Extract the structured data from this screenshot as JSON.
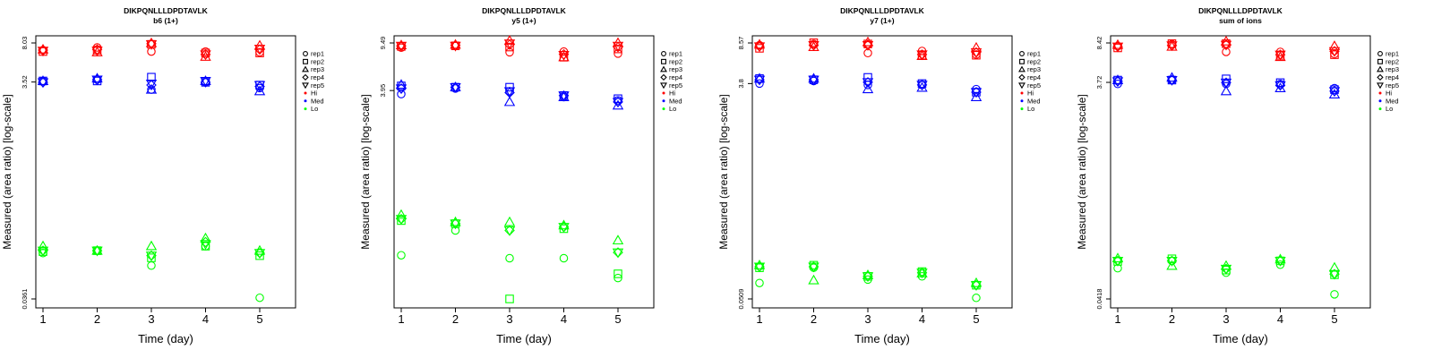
{
  "chart_data": [
    {
      "type": "scatter",
      "title": "DIKPQNLLLDPDTAVLK",
      "subtitle": "b6 (1+)",
      "xlabel": "Time (day)",
      "ylabel": "Measured (area ratio) [log-scale]",
      "scale": "log",
      "x_ticks": [
        "1",
        "2",
        "3",
        "4",
        "5"
      ],
      "y_ticks": [
        "8.03",
        "3.52",
        "0.0361"
      ],
      "ylim": [
        0.0361,
        8.03
      ],
      "series": [
        {
          "group": "Hi",
          "rep": "rep1",
          "values": [
            6.9,
            7.3,
            6.7,
            6.7,
            6.6
          ]
        },
        {
          "group": "Hi",
          "rep": "rep2",
          "values": [
            6.7,
            6.9,
            7.8,
            6.5,
            6.5
          ]
        },
        {
          "group": "Hi",
          "rep": "rep3",
          "values": [
            7.0,
            6.6,
            8.0,
            6.0,
            7.6
          ]
        },
        {
          "group": "Hi",
          "rep": "rep4",
          "values": [
            6.9,
            7.0,
            7.9,
            6.3,
            7.0
          ]
        },
        {
          "group": "Hi",
          "rep": "rep5",
          "values": [
            6.8,
            6.8,
            7.8,
            6.3,
            7.1
          ]
        },
        {
          "group": "Med",
          "rep": "rep1",
          "values": [
            3.6,
            3.7,
            3.0,
            3.5,
            3.1
          ]
        },
        {
          "group": "Med",
          "rep": "rep2",
          "values": [
            3.6,
            3.6,
            3.9,
            3.5,
            3.3
          ]
        },
        {
          "group": "Med",
          "rep": "rep3",
          "values": [
            3.6,
            3.8,
            3.0,
            3.6,
            2.9
          ]
        },
        {
          "group": "Med",
          "rep": "rep4",
          "values": [
            3.5,
            3.7,
            3.3,
            3.5,
            3.2
          ]
        },
        {
          "group": "Med",
          "rep": "rep5",
          "values": [
            3.5,
            3.7,
            3.4,
            3.6,
            3.3
          ]
        },
        {
          "group": "Lo",
          "rep": "rep1",
          "values": [
            0.095,
            0.1,
            0.073,
            0.11,
            0.037
          ]
        },
        {
          "group": "Lo",
          "rep": "rep2",
          "values": [
            0.098,
            0.1,
            0.086,
            0.11,
            0.09
          ]
        },
        {
          "group": "Lo",
          "rep": "rep3",
          "values": [
            0.11,
            0.1,
            0.11,
            0.13,
            0.1
          ]
        },
        {
          "group": "Lo",
          "rep": "rep4",
          "values": [
            0.1,
            0.1,
            0.09,
            0.12,
            0.095
          ]
        },
        {
          "group": "Lo",
          "rep": "rep5",
          "values": [
            0.1,
            0.1,
            0.09,
            0.115,
            0.095
          ]
        }
      ]
    },
    {
      "type": "scatter",
      "title": "DIKPQNLLLDPDTAVLK",
      "subtitle": "y5 (1+)",
      "xlabel": "Time (day)",
      "ylabel": "Measured (area ratio) [log-scale]",
      "scale": "log",
      "x_ticks": [
        "1",
        "2",
        "3",
        "4",
        "5"
      ],
      "y_ticks": [
        "9.49",
        "3.95"
      ],
      "ylim": [
        0.085,
        9.49
      ],
      "series": [
        {
          "group": "Hi",
          "rep": "rep1",
          "values": [
            8.7,
            9.0,
            8.0,
            8.1,
            7.8
          ]
        },
        {
          "group": "Hi",
          "rep": "rep2",
          "values": [
            8.9,
            9.0,
            8.8,
            7.3,
            8.5
          ]
        },
        {
          "group": "Hi",
          "rep": "rep3",
          "values": [
            9.1,
            9.2,
            9.9,
            7.3,
            9.5
          ]
        },
        {
          "group": "Hi",
          "rep": "rep4",
          "values": [
            9.0,
            9.1,
            9.2,
            7.7,
            8.8
          ]
        },
        {
          "group": "Hi",
          "rep": "rep5",
          "values": [
            9.0,
            9.0,
            9.4,
            7.6,
            9.0
          ]
        },
        {
          "group": "Med",
          "rep": "rep1",
          "values": [
            3.7,
            4.1,
            3.9,
            3.5,
            3.3
          ]
        },
        {
          "group": "Med",
          "rep": "rep2",
          "values": [
            4.3,
            4.2,
            4.2,
            3.6,
            3.4
          ]
        },
        {
          "group": "Med",
          "rep": "rep3",
          "values": [
            4.4,
            4.2,
            3.2,
            3.5,
            3.0
          ]
        },
        {
          "group": "Med",
          "rep": "rep4",
          "values": [
            4.1,
            4.2,
            3.8,
            3.6,
            3.2
          ]
        },
        {
          "group": "Med",
          "rep": "rep5",
          "values": [
            4.1,
            4.2,
            3.9,
            3.6,
            3.2
          ]
        },
        {
          "group": "Lo",
          "rep": "rep1",
          "values": [
            0.19,
            0.3,
            0.18,
            0.18,
            0.125
          ]
        },
        {
          "group": "Lo",
          "rep": "rep2",
          "values": [
            0.36,
            0.34,
            0.085,
            0.31,
            0.135
          ]
        },
        {
          "group": "Lo",
          "rep": "rep3",
          "values": [
            0.4,
            0.35,
            0.35,
            0.33,
            0.25
          ]
        },
        {
          "group": "Lo",
          "rep": "rep4",
          "values": [
            0.37,
            0.34,
            0.3,
            0.32,
            0.2
          ]
        },
        {
          "group": "Lo",
          "rep": "rep5",
          "values": [
            0.37,
            0.34,
            0.3,
            0.32,
            0.2
          ]
        }
      ]
    },
    {
      "type": "scatter",
      "title": "DIKPQNLLLDPDTAVLK",
      "subtitle": "y7 (1+)",
      "xlabel": "Time (day)",
      "ylabel": "Measured (area ratio) [log-scale]",
      "scale": "log",
      "x_ticks": [
        "1",
        "2",
        "3",
        "4",
        "5"
      ],
      "y_ticks": [
        "8.57",
        "3.8",
        "0.0509"
      ],
      "ylim": [
        0.0509,
        8.57
      ],
      "series": [
        {
          "group": "Hi",
          "rep": "rep1",
          "values": [
            8.2,
            8.4,
            7.0,
            7.3,
            6.8
          ]
        },
        {
          "group": "Hi",
          "rep": "rep2",
          "values": [
            7.7,
            8.6,
            8.4,
            6.7,
            6.7
          ]
        },
        {
          "group": "Hi",
          "rep": "rep3",
          "values": [
            8.3,
            7.9,
            8.7,
            6.6,
            7.8
          ]
        },
        {
          "group": "Hi",
          "rep": "rep4",
          "values": [
            8.0,
            8.2,
            8.2,
            6.8,
            7.1
          ]
        },
        {
          "group": "Hi",
          "rep": "rep5",
          "values": [
            8.0,
            8.2,
            8.2,
            6.8,
            7.1
          ]
        },
        {
          "group": "Med",
          "rep": "rep1",
          "values": [
            3.8,
            4.0,
            3.7,
            3.7,
            3.4
          ]
        },
        {
          "group": "Med",
          "rep": "rep2",
          "values": [
            4.2,
            4.1,
            4.3,
            3.8,
            3.2
          ]
        },
        {
          "group": "Med",
          "rep": "rep3",
          "values": [
            4.2,
            4.2,
            3.4,
            3.5,
            2.9
          ]
        },
        {
          "group": "Med",
          "rep": "rep4",
          "values": [
            4.1,
            4.1,
            3.9,
            3.7,
            3.2
          ]
        },
        {
          "group": "Med",
          "rep": "rep5",
          "values": [
            4.1,
            4.1,
            3.9,
            3.7,
            3.2
          ]
        },
        {
          "group": "Lo",
          "rep": "rep1",
          "values": [
            0.07,
            0.095,
            0.075,
            0.08,
            0.052
          ]
        },
        {
          "group": "Lo",
          "rep": "rep2",
          "values": [
            0.095,
            0.1,
            0.08,
            0.088,
            0.067
          ]
        },
        {
          "group": "Lo",
          "rep": "rep3",
          "values": [
            0.1,
            0.074,
            0.082,
            0.085,
            0.07
          ]
        },
        {
          "group": "Lo",
          "rep": "rep4",
          "values": [
            0.097,
            0.097,
            0.08,
            0.086,
            0.067
          ]
        },
        {
          "group": "Lo",
          "rep": "rep5",
          "values": [
            0.097,
            0.097,
            0.08,
            0.086,
            0.067
          ]
        }
      ]
    },
    {
      "type": "scatter",
      "title": "DIKPQNLLLDPDTAVLK",
      "subtitle": "sum of ions",
      "xlabel": "Time (day)",
      "ylabel": "Measured (area ratio) [log-scale]",
      "scale": "log",
      "x_ticks": [
        "1",
        "2",
        "3",
        "4",
        "5"
      ],
      "y_ticks": [
        "8.42",
        "3.72",
        "0.0418"
      ],
      "ylim": [
        0.0418,
        8.42
      ],
      "series": [
        {
          "group": "Hi",
          "rep": "rep1",
          "values": [
            7.9,
            8.2,
            7.0,
            7.0,
            6.7
          ]
        },
        {
          "group": "Hi",
          "rep": "rep2",
          "values": [
            7.6,
            8.3,
            8.3,
            6.5,
            6.6
          ]
        },
        {
          "group": "Hi",
          "rep": "rep3",
          "values": [
            8.1,
            7.8,
            8.7,
            6.3,
            7.9
          ]
        },
        {
          "group": "Hi",
          "rep": "rep4",
          "values": [
            7.8,
            8.0,
            8.1,
            6.6,
            7.1
          ]
        },
        {
          "group": "Hi",
          "rep": "rep5",
          "values": [
            7.8,
            8.0,
            8.1,
            6.6,
            7.1
          ]
        },
        {
          "group": "Med",
          "rep": "rep1",
          "values": [
            3.6,
            3.9,
            3.6,
            3.6,
            3.3
          ]
        },
        {
          "group": "Med",
          "rep": "rep2",
          "values": [
            3.9,
            3.9,
            4.0,
            3.7,
            3.2
          ]
        },
        {
          "group": "Med",
          "rep": "rep3",
          "values": [
            3.9,
            4.1,
            3.1,
            3.3,
            2.9
          ]
        },
        {
          "group": "Med",
          "rep": "rep4",
          "values": [
            3.8,
            3.9,
            3.7,
            3.5,
            3.1
          ]
        },
        {
          "group": "Med",
          "rep": "rep5",
          "values": [
            3.8,
            3.9,
            3.7,
            3.5,
            3.1
          ]
        },
        {
          "group": "Lo",
          "rep": "rep1",
          "values": [
            0.079,
            0.092,
            0.072,
            0.085,
            0.046
          ]
        },
        {
          "group": "Lo",
          "rep": "rep2",
          "values": [
            0.091,
            0.096,
            0.076,
            0.092,
            0.069
          ]
        },
        {
          "group": "Lo",
          "rep": "rep3",
          "values": [
            0.097,
            0.083,
            0.083,
            0.095,
            0.08
          ]
        },
        {
          "group": "Lo",
          "rep": "rep4",
          "values": [
            0.092,
            0.092,
            0.078,
            0.092,
            0.07
          ]
        },
        {
          "group": "Lo",
          "rep": "rep5",
          "values": [
            0.092,
            0.092,
            0.078,
            0.092,
            0.07
          ]
        }
      ]
    }
  ],
  "legend": {
    "placement": "right",
    "reps": [
      {
        "label": "rep1",
        "shape": "circle"
      },
      {
        "label": "rep2",
        "shape": "square"
      },
      {
        "label": "rep3",
        "shape": "triangle-up"
      },
      {
        "label": "rep4",
        "shape": "diamond"
      },
      {
        "label": "rep5",
        "shape": "triangle-down"
      }
    ],
    "groups": [
      {
        "label": "Hi",
        "color": "#ff0000"
      },
      {
        "label": "Med",
        "color": "#0000ff"
      },
      {
        "label": "Lo",
        "color": "#00ff00"
      }
    ]
  }
}
